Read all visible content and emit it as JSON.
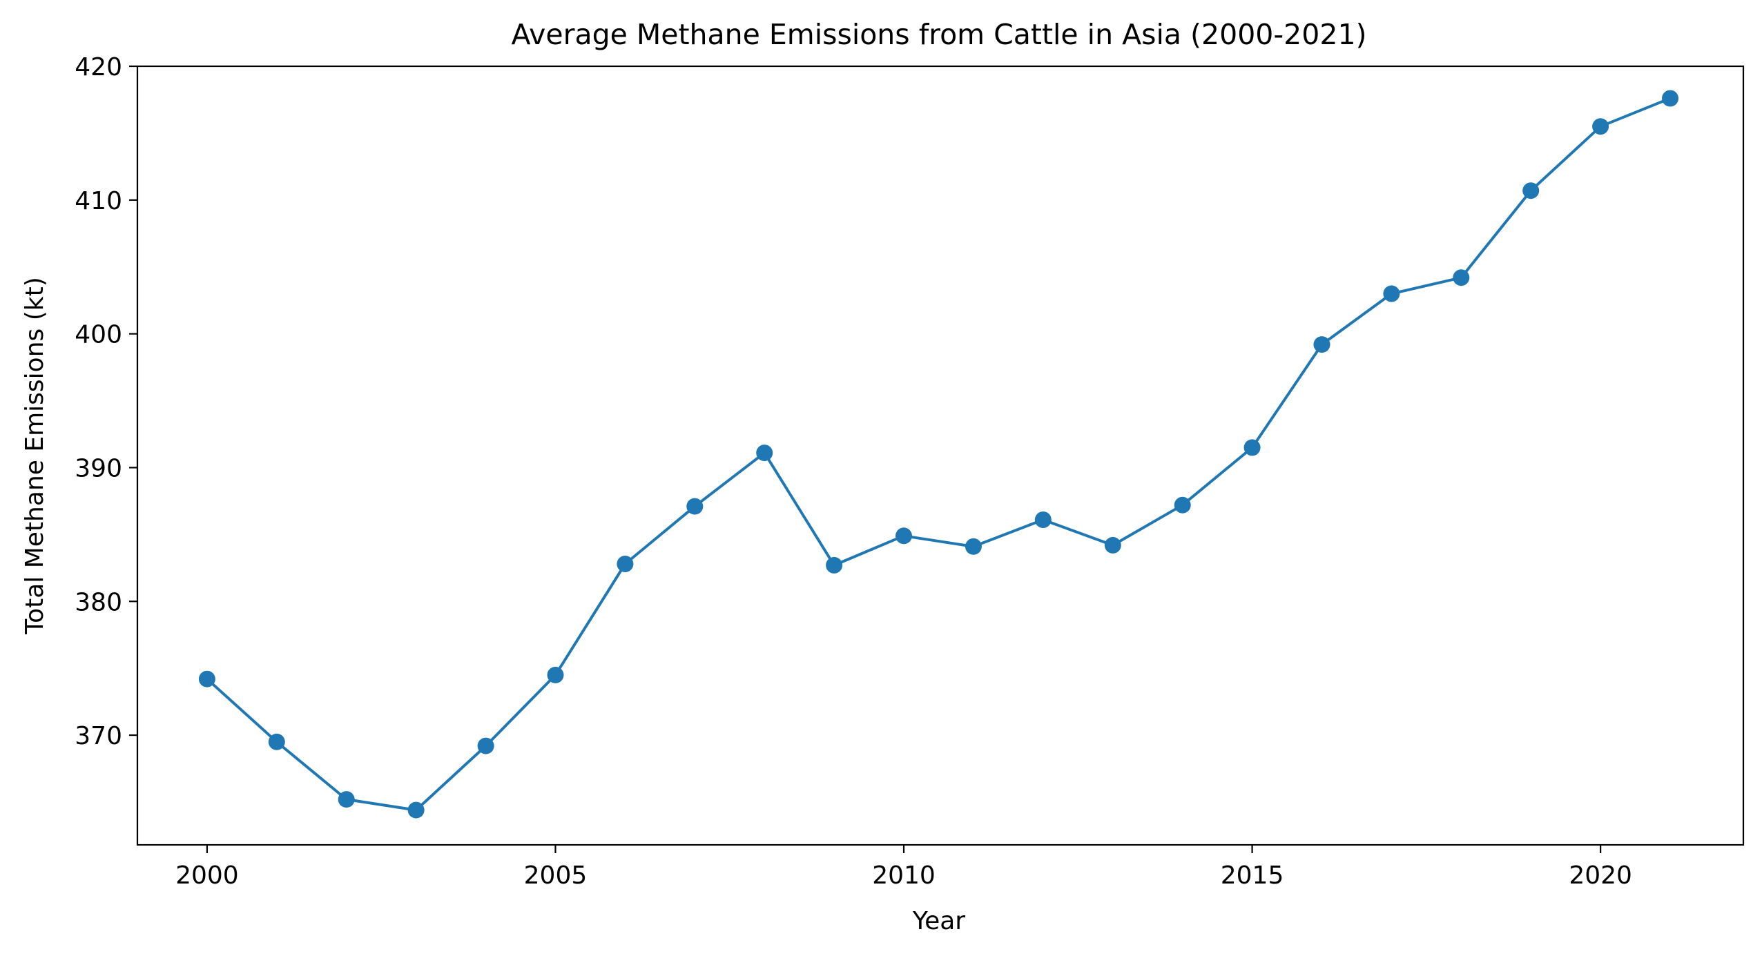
{
  "chart_data": {
    "type": "line",
    "title": "Average Methane Emissions from Cattle in Asia (2000-2021)",
    "xlabel": "Year",
    "ylabel": "Total Methane Emissions (kt)",
    "x": [
      2000,
      2001,
      2002,
      2003,
      2004,
      2005,
      2006,
      2007,
      2008,
      2009,
      2010,
      2011,
      2012,
      2013,
      2014,
      2015,
      2016,
      2017,
      2018,
      2019,
      2020,
      2021
    ],
    "series": [
      {
        "values": [
          374.2,
          369.5,
          365.2,
          364.4,
          369.2,
          374.5,
          382.8,
          387.1,
          391.1,
          382.7,
          384.9,
          384.1,
          386.1,
          384.2,
          387.2,
          391.5,
          399.2,
          403.0,
          404.2,
          410.7,
          415.5,
          417.6
        ],
        "color": "#1f77b4",
        "marker": "circle"
      }
    ],
    "xlim": [
      1999.0,
      2022.05
    ],
    "ylim": [
      361.8,
      420.0
    ],
    "xticks": [
      2000,
      2005,
      2010,
      2015,
      2020
    ],
    "yticks": [
      370,
      380,
      390,
      400,
      410,
      420
    ],
    "grid": false,
    "legend": "none"
  }
}
